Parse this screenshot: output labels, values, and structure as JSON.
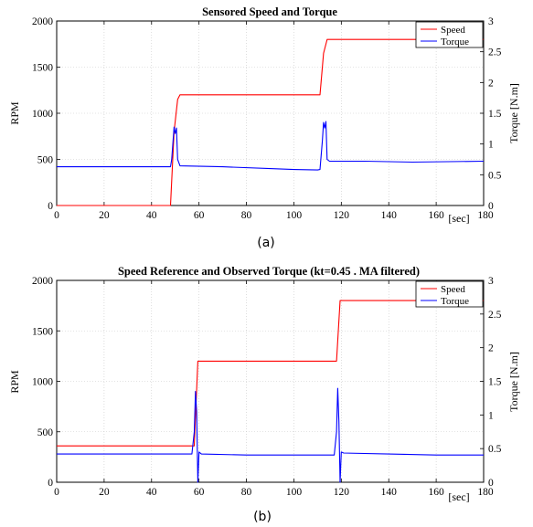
{
  "chart_data": [
    {
      "type": "line",
      "title": "Sensored Speed and Torque",
      "caption": "(a)",
      "xlabel": "[sec]",
      "ylabel": "RPM",
      "y2label": "Torque [N.m]",
      "xlim": [
        0,
        180
      ],
      "ylim": [
        0,
        2000
      ],
      "y2lim": [
        0,
        3
      ],
      "xticks": [
        "0",
        "20",
        "40",
        "60",
        "80",
        "100",
        "120",
        "140",
        "160",
        "180"
      ],
      "yticks": [
        "0",
        "500",
        "1000",
        "1500",
        "2000"
      ],
      "y2ticks": [
        "0",
        "0.5",
        "1",
        "1.5",
        "2",
        "2.5",
        "3"
      ],
      "grid": true,
      "legend_position": "top-right",
      "series": [
        {
          "name": "Speed",
          "axis": "left",
          "color": "#ff0000",
          "x": [
            0,
            48,
            49.5,
            51,
            52,
            111,
            112.5,
            114,
            115,
            180
          ],
          "y": [
            0,
            0,
            800,
            1150,
            1200,
            1200,
            1650,
            1800,
            1800,
            1800
          ]
        },
        {
          "name": "Torque",
          "axis": "left",
          "color": "#0000ff",
          "x": [
            0,
            48,
            48.5,
            49.5,
            50,
            50.5,
            51,
            52,
            70,
            90,
            100,
            110,
            111,
            112,
            112.5,
            113,
            113.5,
            114,
            115,
            130,
            150,
            180
          ],
          "y": [
            420,
            420,
            500,
            850,
            780,
            840,
            500,
            430,
            420,
            400,
            390,
            385,
            390,
            700,
            900,
            840,
            910,
            500,
            480,
            480,
            470,
            480
          ]
        }
      ]
    },
    {
      "type": "line",
      "title": "Speed Reference and Observed Torque (kt=0.45 . MA filtered)",
      "caption": "(b)",
      "xlabel": "[sec]",
      "ylabel": "RPM",
      "y2label": "Torque [N.m]",
      "xlim": [
        0,
        180
      ],
      "ylim": [
        0,
        2000
      ],
      "y2lim": [
        0,
        3
      ],
      "xticks": [
        "0",
        "20",
        "40",
        "60",
        "80",
        "100",
        "120",
        "140",
        "160",
        "180"
      ],
      "yticks": [
        "0",
        "500",
        "1000",
        "1500",
        "2000"
      ],
      "y2ticks": [
        "0",
        "0.5",
        "1",
        "1.5",
        "2",
        "2.5",
        "3"
      ],
      "grid": true,
      "legend_position": "top-right",
      "series": [
        {
          "name": "Speed",
          "axis": "left",
          "color": "#ff0000",
          "x": [
            0,
            58,
            59.5,
            118,
            119.5,
            180
          ],
          "y": [
            360,
            360,
            1200,
            1200,
            1800,
            1800
          ]
        },
        {
          "name": "Torque",
          "axis": "left",
          "color": "#0000ff",
          "x": [
            0,
            57,
            58,
            58.5,
            59,
            59.5,
            60,
            61,
            80,
            100,
            117,
            118,
            118.5,
            119,
            119.5,
            120,
            121,
            140,
            160,
            180
          ],
          "y": [
            280,
            280,
            500,
            900,
            700,
            0,
            300,
            280,
            270,
            270,
            270,
            500,
            930,
            600,
            0,
            300,
            290,
            280,
            270,
            270
          ]
        }
      ]
    }
  ]
}
